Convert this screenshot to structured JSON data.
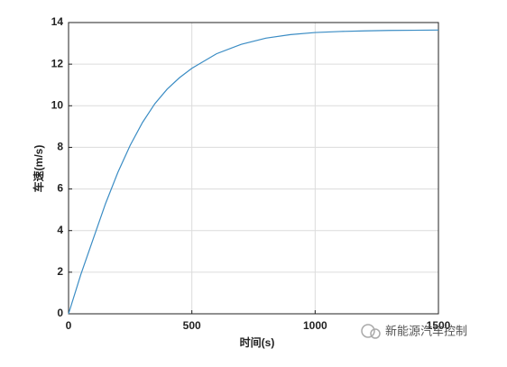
{
  "chart_data": {
    "type": "line",
    "xlabel": "时间(s)",
    "ylabel": "车速(m/s)",
    "x": [
      0,
      50,
      100,
      150,
      200,
      250,
      300,
      350,
      400,
      450,
      500,
      600,
      700,
      800,
      900,
      1000,
      1100,
      1200,
      1300,
      1400,
      1500
    ],
    "values": [
      0,
      1.9,
      3.6,
      5.3,
      6.8,
      8.1,
      9.2,
      10.1,
      10.8,
      11.35,
      11.8,
      12.5,
      12.95,
      13.25,
      13.42,
      13.52,
      13.57,
      13.6,
      13.62,
      13.63,
      13.64
    ],
    "color": "#3a8cc4",
    "xlim": [
      0,
      1500
    ],
    "xticks": [
      0,
      500,
      1000,
      1500
    ],
    "ylim": [
      0,
      14
    ],
    "yticks": [
      0,
      2,
      4,
      6,
      8,
      10,
      12,
      14
    ],
    "grid": true
  },
  "watermark": "新能源汽车控制"
}
